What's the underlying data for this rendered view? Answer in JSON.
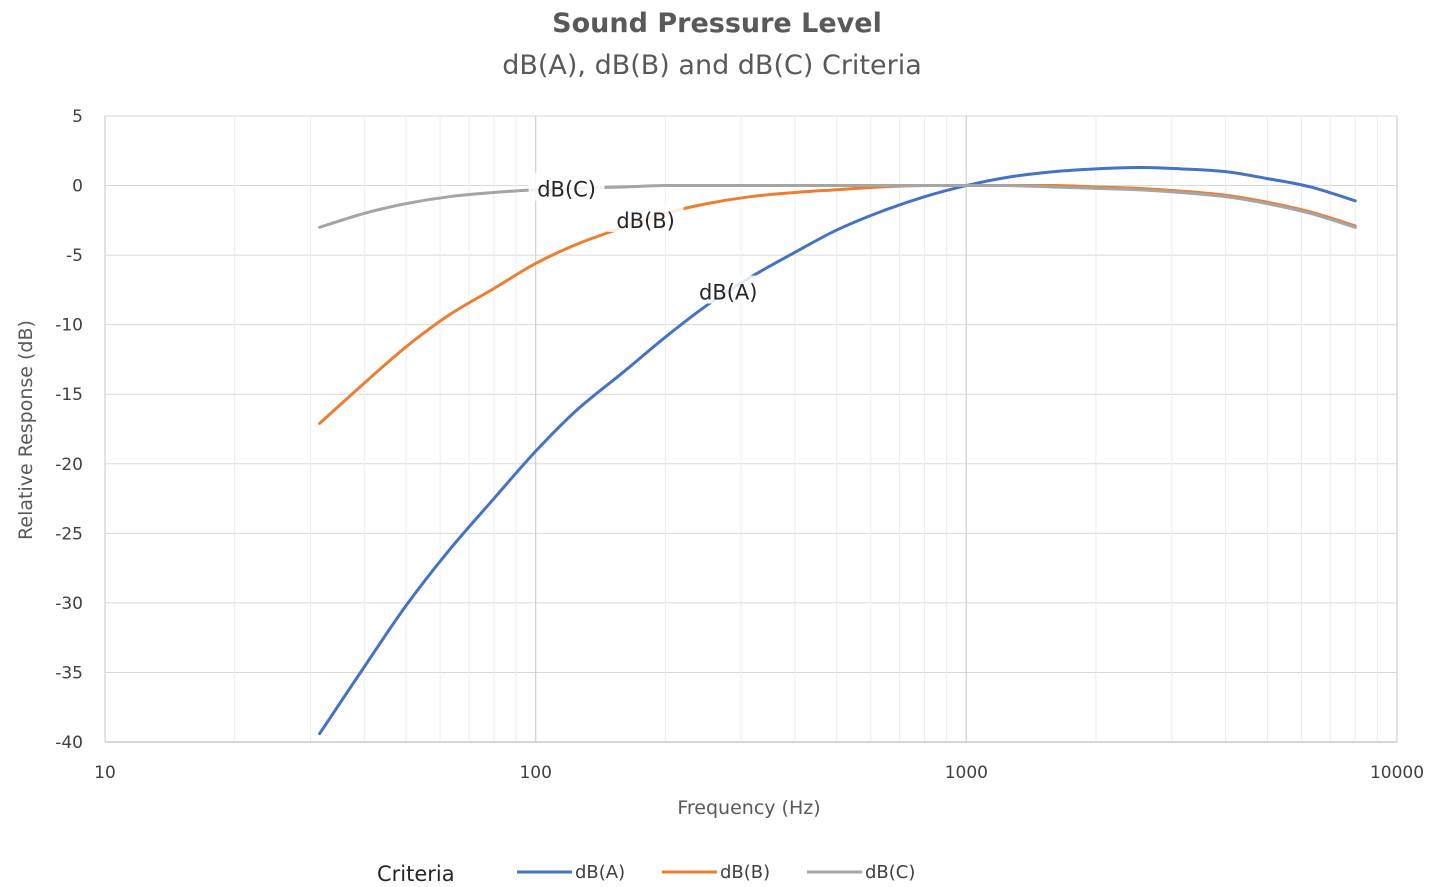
{
  "chart_data": {
    "type": "line",
    "title": "Sound Pressure Level",
    "subtitle": "dB(A), dB(B) and dB(C) Criteria",
    "xlabel": "Frequency  (Hz)",
    "ylabel": "Relative Response (dB)",
    "x_scale": "log",
    "xlim": [
      10,
      10000
    ],
    "ylim": [
      -40,
      5
    ],
    "x_ticks": [
      10,
      100,
      1000,
      10000
    ],
    "x_tick_labels": [
      "10",
      "100",
      "1000",
      "10000"
    ],
    "y_ticks": [
      5,
      0,
      -5,
      -10,
      -15,
      -20,
      -25,
      -30,
      -35,
      -40
    ],
    "y_tick_labels": [
      "5",
      "0",
      "-5",
      "-10",
      "-15",
      "-20",
      "-25",
      "-30",
      "-35",
      "-40"
    ],
    "grid": true,
    "legend": {
      "title": "Criteria",
      "position": "bottom"
    },
    "x": [
      31.5,
      40,
      50,
      63,
      80,
      100,
      125,
      160,
      200,
      250,
      315,
      400,
      500,
      630,
      800,
      1000,
      1250,
      1600,
      2000,
      2500,
      3150,
      4000,
      5000,
      6300,
      8000
    ],
    "series": [
      {
        "name": "dB(A)",
        "color": "#4472C4",
        "inline_label": "dB(A)",
        "values": [
          -39.4,
          -34.6,
          -30.2,
          -26.2,
          -22.5,
          -19.1,
          -16.1,
          -13.4,
          -10.9,
          -8.6,
          -6.6,
          -4.8,
          -3.2,
          -1.9,
          -0.8,
          0.0,
          0.6,
          1.0,
          1.2,
          1.3,
          1.2,
          1.0,
          0.5,
          -0.1,
          -1.1
        ]
      },
      {
        "name": "dB(B)",
        "color": "#ED7D31",
        "inline_label": "dB(B)",
        "values": [
          -17.1,
          -14.2,
          -11.6,
          -9.3,
          -7.4,
          -5.6,
          -4.2,
          -3.0,
          -2.0,
          -1.3,
          -0.8,
          -0.5,
          -0.3,
          -0.1,
          0.0,
          0.0,
          0.0,
          0.0,
          -0.1,
          -0.2,
          -0.4,
          -0.7,
          -1.2,
          -1.9,
          -2.9
        ]
      },
      {
        "name": "dB(C)",
        "color": "#A5A5A5",
        "inline_label": "dB(C)",
        "values": [
          -3.0,
          -2.0,
          -1.3,
          -0.8,
          -0.5,
          -0.3,
          -0.2,
          -0.1,
          0.0,
          0.0,
          0.0,
          0.0,
          0.0,
          0.0,
          0.0,
          0.0,
          0.0,
          -0.1,
          -0.2,
          -0.3,
          -0.5,
          -0.8,
          -1.3,
          -2.0,
          -3.0
        ]
      }
    ]
  }
}
